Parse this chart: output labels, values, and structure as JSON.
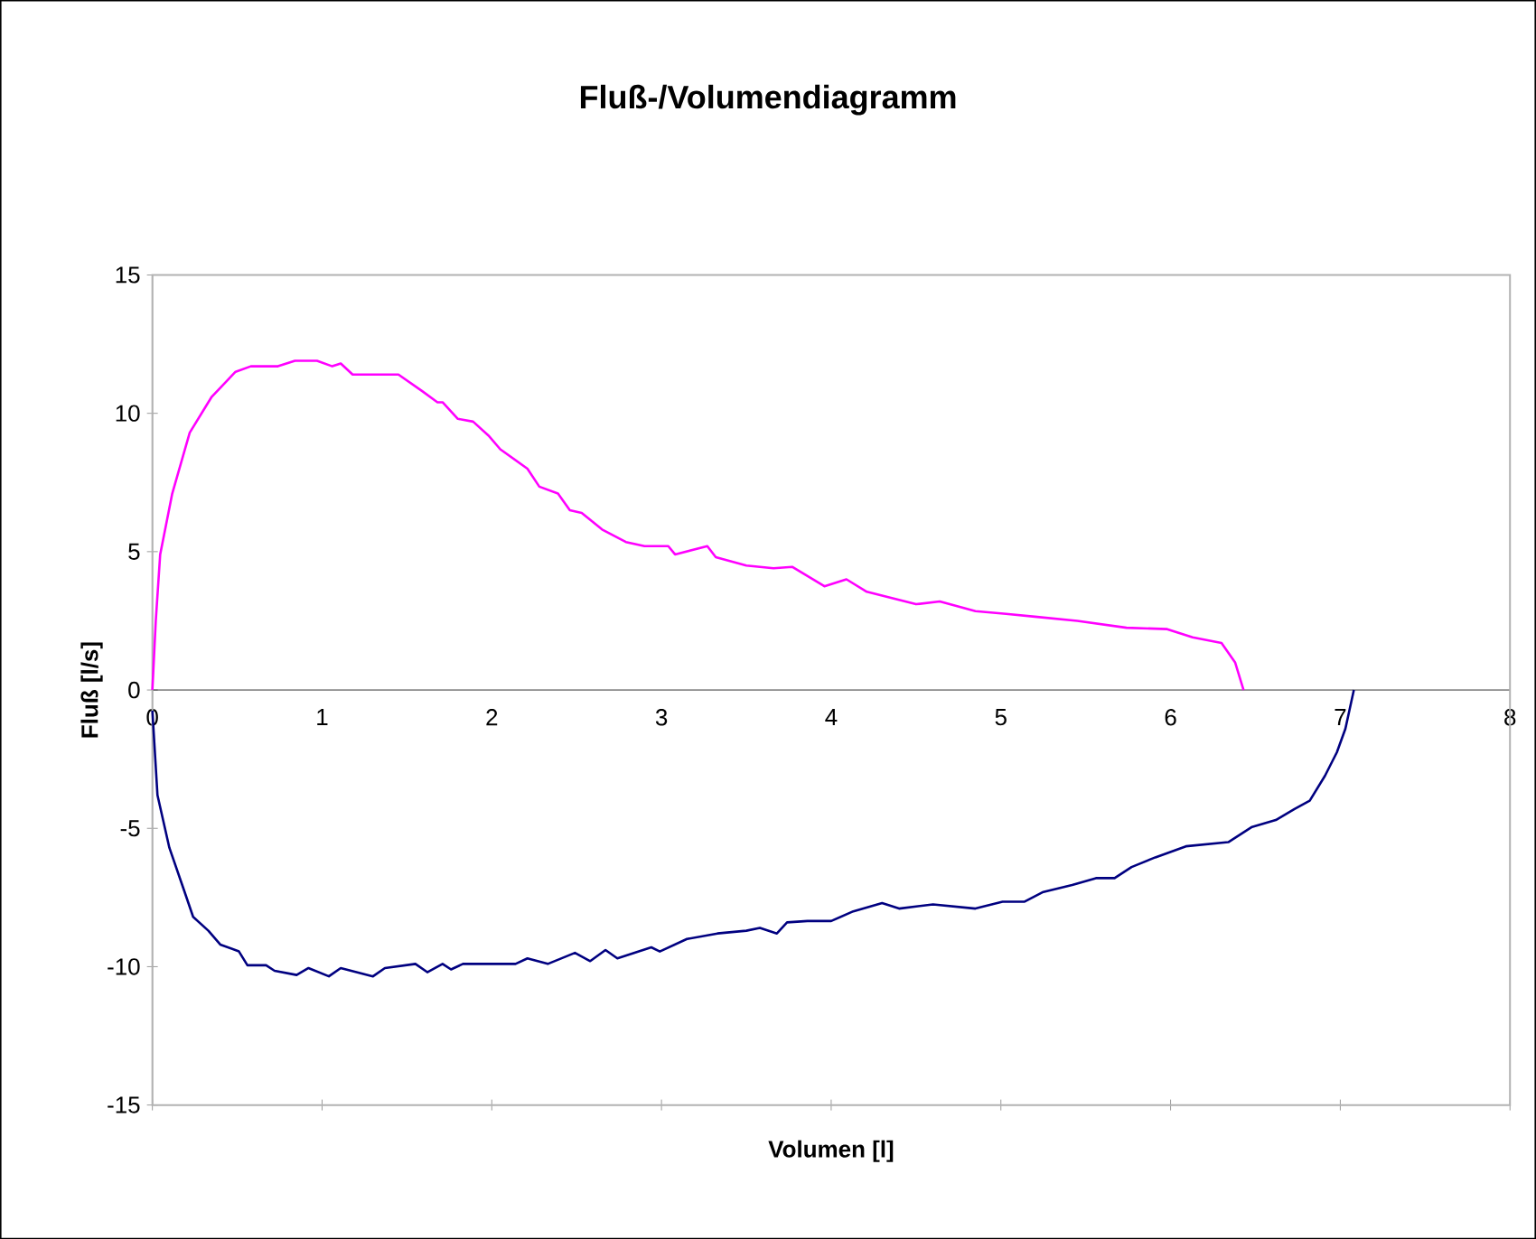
{
  "chart_data": {
    "type": "line",
    "title": "Fluß-/Volumendiagramm",
    "xlabel": "Volumen [l]",
    "ylabel": "Fluß [l/s]",
    "xlim": [
      0,
      8
    ],
    "ylim": [
      -15,
      15
    ],
    "xticks": [
      0,
      1,
      2,
      3,
      4,
      5,
      6,
      7,
      8
    ],
    "yticks": [
      -15,
      -10,
      -5,
      0,
      5,
      10,
      15
    ],
    "grid": false,
    "legend": false,
    "marker": "none",
    "line_style": "solid",
    "series": [
      {
        "color": "#ff00ff",
        "x": [
          0,
          0.02,
          0.046,
          0.117,
          0.22,
          0.35,
          0.49,
          0.58,
          0.74,
          0.84,
          0.97,
          1.06,
          1.11,
          1.18,
          1.45,
          1.59,
          1.68,
          1.71,
          1.8,
          1.89,
          1.98,
          2.05,
          2.21,
          2.28,
          2.39,
          2.46,
          2.53,
          2.65,
          2.79,
          2.9,
          3.04,
          3.08,
          3.27,
          3.32,
          3.5,
          3.66,
          3.77,
          3.96,
          4.09,
          4.21,
          4.5,
          4.64,
          4.85,
          5.03,
          5.2,
          5.45,
          5.74,
          5.98,
          6.13,
          6.3,
          6.38,
          6.43
        ],
        "values": [
          0,
          2.5,
          4.9,
          7.1,
          9.3,
          10.6,
          11.5,
          11.7,
          11.7,
          11.9,
          11.9,
          11.7,
          11.8,
          11.4,
          11.4,
          10.8,
          10.4,
          10.4,
          9.8,
          9.7,
          9.2,
          8.7,
          8.0,
          7.35,
          7.1,
          6.5,
          6.4,
          5.8,
          5.35,
          5.2,
          5.2,
          4.9,
          5.2,
          4.8,
          4.5,
          4.4,
          4.45,
          3.75,
          4.0,
          3.55,
          3.1,
          3.2,
          2.85,
          2.75,
          2.65,
          2.5,
          2.25,
          2.2,
          1.9,
          1.7,
          1.0,
          0
        ]
      },
      {
        "color": "#000080",
        "x": [
          0,
          0.03,
          0.1,
          0.19,
          0.24,
          0.33,
          0.4,
          0.51,
          0.56,
          0.67,
          0.72,
          0.85,
          0.92,
          1.04,
          1.11,
          1.3,
          1.37,
          1.55,
          1.62,
          1.71,
          1.76,
          1.83,
          2.14,
          2.21,
          2.33,
          2.49,
          2.58,
          2.67,
          2.74,
          2.94,
          2.99,
          3.15,
          3.33,
          3.5,
          3.58,
          3.68,
          3.74,
          3.86,
          4.0,
          4.13,
          4.3,
          4.4,
          4.6,
          4.85,
          5.01,
          5.14,
          5.25,
          5.42,
          5.56,
          5.67,
          5.77,
          5.91,
          6.09,
          6.34,
          6.48,
          6.62,
          6.73,
          6.82,
          6.91,
          6.98,
          7.03,
          7.08
        ],
        "values": [
          -0.75,
          -3.8,
          -5.7,
          -7.3,
          -8.2,
          -8.7,
          -9.2,
          -9.45,
          -9.95,
          -9.95,
          -10.15,
          -10.3,
          -10.05,
          -10.35,
          -10.05,
          -10.35,
          -10.05,
          -9.9,
          -10.2,
          -9.9,
          -10.1,
          -9.9,
          -9.9,
          -9.7,
          -9.9,
          -9.5,
          -9.8,
          -9.4,
          -9.7,
          -9.3,
          -9.45,
          -9.0,
          -8.8,
          -8.7,
          -8.6,
          -8.8,
          -8.4,
          -8.35,
          -8.35,
          -8.0,
          -7.7,
          -7.9,
          -7.75,
          -7.9,
          -7.65,
          -7.65,
          -7.3,
          -7.05,
          -6.8,
          -6.8,
          -6.4,
          -6.05,
          -5.65,
          -5.5,
          -4.95,
          -4.7,
          -4.3,
          -4.0,
          -3.1,
          -2.25,
          -1.4,
          0
        ]
      }
    ]
  }
}
